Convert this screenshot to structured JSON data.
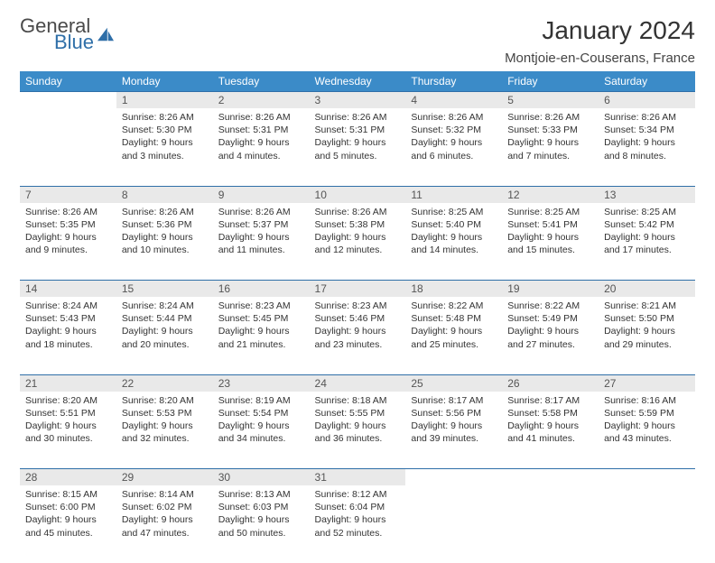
{
  "brand": {
    "word1": "General",
    "word2": "Blue"
  },
  "title": "January 2024",
  "location": "Montjoie-en-Couserans, France",
  "colors": {
    "header_bg": "#3b8bc8",
    "header_text": "#ffffff",
    "daynum_bg": "#e9e9e9",
    "rule": "#2f6fa8",
    "body_text": "#333333",
    "logo_blue": "#2f6fa8"
  },
  "day_headers": [
    "Sunday",
    "Monday",
    "Tuesday",
    "Wednesday",
    "Thursday",
    "Friday",
    "Saturday"
  ],
  "weeks": [
    {
      "nums": [
        "",
        "1",
        "2",
        "3",
        "4",
        "5",
        "6"
      ],
      "cells": [
        null,
        {
          "sunrise": "Sunrise: 8:26 AM",
          "sunset": "Sunset: 5:30 PM",
          "day1": "Daylight: 9 hours",
          "day2": "and 3 minutes."
        },
        {
          "sunrise": "Sunrise: 8:26 AM",
          "sunset": "Sunset: 5:31 PM",
          "day1": "Daylight: 9 hours",
          "day2": "and 4 minutes."
        },
        {
          "sunrise": "Sunrise: 8:26 AM",
          "sunset": "Sunset: 5:31 PM",
          "day1": "Daylight: 9 hours",
          "day2": "and 5 minutes."
        },
        {
          "sunrise": "Sunrise: 8:26 AM",
          "sunset": "Sunset: 5:32 PM",
          "day1": "Daylight: 9 hours",
          "day2": "and 6 minutes."
        },
        {
          "sunrise": "Sunrise: 8:26 AM",
          "sunset": "Sunset: 5:33 PM",
          "day1": "Daylight: 9 hours",
          "day2": "and 7 minutes."
        },
        {
          "sunrise": "Sunrise: 8:26 AM",
          "sunset": "Sunset: 5:34 PM",
          "day1": "Daylight: 9 hours",
          "day2": "and 8 minutes."
        }
      ]
    },
    {
      "nums": [
        "7",
        "8",
        "9",
        "10",
        "11",
        "12",
        "13"
      ],
      "cells": [
        {
          "sunrise": "Sunrise: 8:26 AM",
          "sunset": "Sunset: 5:35 PM",
          "day1": "Daylight: 9 hours",
          "day2": "and 9 minutes."
        },
        {
          "sunrise": "Sunrise: 8:26 AM",
          "sunset": "Sunset: 5:36 PM",
          "day1": "Daylight: 9 hours",
          "day2": "and 10 minutes."
        },
        {
          "sunrise": "Sunrise: 8:26 AM",
          "sunset": "Sunset: 5:37 PM",
          "day1": "Daylight: 9 hours",
          "day2": "and 11 minutes."
        },
        {
          "sunrise": "Sunrise: 8:26 AM",
          "sunset": "Sunset: 5:38 PM",
          "day1": "Daylight: 9 hours",
          "day2": "and 12 minutes."
        },
        {
          "sunrise": "Sunrise: 8:25 AM",
          "sunset": "Sunset: 5:40 PM",
          "day1": "Daylight: 9 hours",
          "day2": "and 14 minutes."
        },
        {
          "sunrise": "Sunrise: 8:25 AM",
          "sunset": "Sunset: 5:41 PM",
          "day1": "Daylight: 9 hours",
          "day2": "and 15 minutes."
        },
        {
          "sunrise": "Sunrise: 8:25 AM",
          "sunset": "Sunset: 5:42 PM",
          "day1": "Daylight: 9 hours",
          "day2": "and 17 minutes."
        }
      ]
    },
    {
      "nums": [
        "14",
        "15",
        "16",
        "17",
        "18",
        "19",
        "20"
      ],
      "cells": [
        {
          "sunrise": "Sunrise: 8:24 AM",
          "sunset": "Sunset: 5:43 PM",
          "day1": "Daylight: 9 hours",
          "day2": "and 18 minutes."
        },
        {
          "sunrise": "Sunrise: 8:24 AM",
          "sunset": "Sunset: 5:44 PM",
          "day1": "Daylight: 9 hours",
          "day2": "and 20 minutes."
        },
        {
          "sunrise": "Sunrise: 8:23 AM",
          "sunset": "Sunset: 5:45 PM",
          "day1": "Daylight: 9 hours",
          "day2": "and 21 minutes."
        },
        {
          "sunrise": "Sunrise: 8:23 AM",
          "sunset": "Sunset: 5:46 PM",
          "day1": "Daylight: 9 hours",
          "day2": "and 23 minutes."
        },
        {
          "sunrise": "Sunrise: 8:22 AM",
          "sunset": "Sunset: 5:48 PM",
          "day1": "Daylight: 9 hours",
          "day2": "and 25 minutes."
        },
        {
          "sunrise": "Sunrise: 8:22 AM",
          "sunset": "Sunset: 5:49 PM",
          "day1": "Daylight: 9 hours",
          "day2": "and 27 minutes."
        },
        {
          "sunrise": "Sunrise: 8:21 AM",
          "sunset": "Sunset: 5:50 PM",
          "day1": "Daylight: 9 hours",
          "day2": "and 29 minutes."
        }
      ]
    },
    {
      "nums": [
        "21",
        "22",
        "23",
        "24",
        "25",
        "26",
        "27"
      ],
      "cells": [
        {
          "sunrise": "Sunrise: 8:20 AM",
          "sunset": "Sunset: 5:51 PM",
          "day1": "Daylight: 9 hours",
          "day2": "and 30 minutes."
        },
        {
          "sunrise": "Sunrise: 8:20 AM",
          "sunset": "Sunset: 5:53 PM",
          "day1": "Daylight: 9 hours",
          "day2": "and 32 minutes."
        },
        {
          "sunrise": "Sunrise: 8:19 AM",
          "sunset": "Sunset: 5:54 PM",
          "day1": "Daylight: 9 hours",
          "day2": "and 34 minutes."
        },
        {
          "sunrise": "Sunrise: 8:18 AM",
          "sunset": "Sunset: 5:55 PM",
          "day1": "Daylight: 9 hours",
          "day2": "and 36 minutes."
        },
        {
          "sunrise": "Sunrise: 8:17 AM",
          "sunset": "Sunset: 5:56 PM",
          "day1": "Daylight: 9 hours",
          "day2": "and 39 minutes."
        },
        {
          "sunrise": "Sunrise: 8:17 AM",
          "sunset": "Sunset: 5:58 PM",
          "day1": "Daylight: 9 hours",
          "day2": "and 41 minutes."
        },
        {
          "sunrise": "Sunrise: 8:16 AM",
          "sunset": "Sunset: 5:59 PM",
          "day1": "Daylight: 9 hours",
          "day2": "and 43 minutes."
        }
      ]
    },
    {
      "nums": [
        "28",
        "29",
        "30",
        "31",
        "",
        "",
        ""
      ],
      "cells": [
        {
          "sunrise": "Sunrise: 8:15 AM",
          "sunset": "Sunset: 6:00 PM",
          "day1": "Daylight: 9 hours",
          "day2": "and 45 minutes."
        },
        {
          "sunrise": "Sunrise: 8:14 AM",
          "sunset": "Sunset: 6:02 PM",
          "day1": "Daylight: 9 hours",
          "day2": "and 47 minutes."
        },
        {
          "sunrise": "Sunrise: 8:13 AM",
          "sunset": "Sunset: 6:03 PM",
          "day1": "Daylight: 9 hours",
          "day2": "and 50 minutes."
        },
        {
          "sunrise": "Sunrise: 8:12 AM",
          "sunset": "Sunset: 6:04 PM",
          "day1": "Daylight: 9 hours",
          "day2": "and 52 minutes."
        },
        null,
        null,
        null
      ]
    }
  ]
}
